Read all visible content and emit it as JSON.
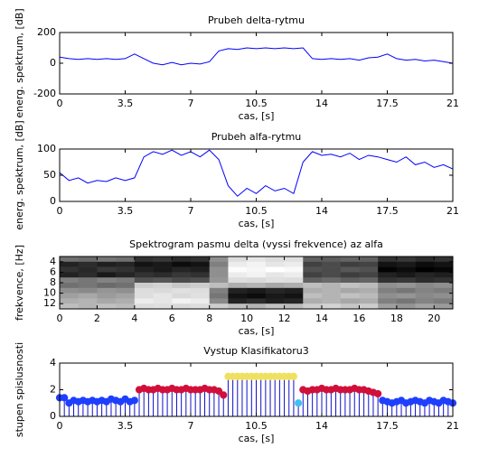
{
  "chart_data": [
    {
      "type": "line",
      "title": "Prubeh delta-rytmu",
      "xlabel": "cas, [s]",
      "ylabel": "energ. spektrum, [dB]",
      "color": "#0000ff",
      "x": [
        0,
        0.5,
        1,
        1.5,
        2,
        2.5,
        3,
        3.5,
        4,
        4.5,
        5,
        5.5,
        6,
        6.5,
        7,
        7.5,
        8,
        8.5,
        9,
        9.5,
        10,
        10.5,
        11,
        11.5,
        12,
        12.5,
        13,
        13.5,
        14,
        14.5,
        15,
        15.5,
        16,
        16.5,
        17,
        17.5,
        18,
        18.5,
        19,
        19.5,
        20,
        20.5,
        21
      ],
      "values": [
        40,
        30,
        25,
        30,
        25,
        30,
        25,
        30,
        60,
        30,
        0,
        -10,
        5,
        -10,
        0,
        -5,
        10,
        80,
        95,
        90,
        100,
        95,
        100,
        95,
        100,
        95,
        100,
        30,
        25,
        30,
        25,
        30,
        20,
        35,
        40,
        60,
        30,
        20,
        25,
        15,
        20,
        10,
        0
      ],
      "xlim": [
        0,
        21
      ],
      "xticks": [
        0,
        3.5,
        7,
        10.5,
        14,
        17.5,
        21
      ],
      "ylim": [
        -200,
        200
      ],
      "yticks": [
        -200,
        0,
        200
      ]
    },
    {
      "type": "line",
      "title": "Prubeh alfa-rytmu",
      "xlabel": "cas, [s]",
      "ylabel": "energ. spektrum, [dB]",
      "color": "#0000ff",
      "x": [
        0,
        0.5,
        1,
        1.5,
        2,
        2.5,
        3,
        3.5,
        4,
        4.5,
        5,
        5.5,
        6,
        6.5,
        7,
        7.5,
        8,
        8.5,
        9,
        9.5,
        10,
        10.5,
        11,
        11.5,
        12,
        12.5,
        13,
        13.5,
        14,
        14.5,
        15,
        15.5,
        16,
        16.5,
        17,
        17.5,
        18,
        18.5,
        19,
        19.5,
        20,
        20.5,
        21
      ],
      "values": [
        55,
        40,
        45,
        35,
        40,
        38,
        45,
        40,
        45,
        85,
        95,
        90,
        98,
        88,
        95,
        85,
        98,
        80,
        30,
        10,
        25,
        15,
        30,
        20,
        25,
        15,
        75,
        95,
        88,
        90,
        85,
        92,
        80,
        88,
        85,
        80,
        75,
        85,
        70,
        75,
        65,
        70,
        62
      ],
      "xlim": [
        0,
        21
      ],
      "xticks": [
        0,
        3.5,
        7,
        10.5,
        14,
        17.5,
        21
      ],
      "ylim": [
        0,
        100
      ],
      "yticks": [
        0,
        50,
        100
      ]
    },
    {
      "type": "heatmap",
      "title": "Spektrogram pasmu delta (vyssi frekvence) az alfa",
      "xlabel": "cas, [s]",
      "ylabel": "frekvence, [Hz]",
      "colormap": "gray",
      "ydir": "reverse",
      "values": [
        [
          50,
          48,
          52,
          50,
          30,
          32,
          28,
          30,
          60,
          85,
          88,
          85,
          86,
          45,
          44,
          46,
          45,
          30,
          32,
          28,
          30
        ],
        [
          25,
          28,
          24,
          26,
          20,
          22,
          18,
          20,
          55,
          90,
          92,
          88,
          90,
          35,
          38,
          34,
          36,
          20,
          22,
          18,
          20
        ],
        [
          30,
          27,
          32,
          30,
          25,
          22,
          26,
          24,
          60,
          95,
          93,
          96,
          94,
          40,
          38,
          42,
          40,
          15,
          18,
          14,
          16
        ],
        [
          25,
          28,
          22,
          26,
          30,
          28,
          32,
          30,
          60,
          90,
          92,
          88,
          90,
          35,
          38,
          34,
          36,
          25,
          22,
          26,
          24
        ],
        [
          55,
          52,
          56,
          54,
          40,
          42,
          38,
          40,
          62,
          85,
          84,
          86,
          85,
          45,
          48,
          44,
          46,
          30,
          32,
          28,
          30
        ],
        [
          50,
          52,
          48,
          50,
          80,
          82,
          78,
          80,
          75,
          70,
          72,
          68,
          70,
          75,
          72,
          76,
          74,
          60,
          62,
          58,
          60
        ],
        [
          60,
          58,
          62,
          60,
          85,
          84,
          86,
          85,
          55,
          25,
          22,
          26,
          24,
          70,
          72,
          68,
          70,
          55,
          52,
          56,
          54
        ],
        [
          65,
          68,
          64,
          66,
          85,
          88,
          84,
          86,
          52,
          20,
          18,
          22,
          20,
          75,
          72,
          76,
          74,
          60,
          62,
          58,
          60
        ],
        [
          70,
          72,
          68,
          70,
          90,
          88,
          92,
          90,
          58,
          25,
          28,
          24,
          26,
          70,
          72,
          68,
          70,
          55,
          52,
          56,
          54
        ],
        [
          75,
          72,
          76,
          74,
          85,
          86,
          84,
          85,
          80,
          75,
          72,
          76,
          74,
          80,
          82,
          78,
          80,
          65,
          62,
          66,
          64
        ]
      ],
      "xlim": [
        0,
        21
      ],
      "xticks": [
        0,
        2,
        4,
        6,
        8,
        10,
        12,
        14,
        16,
        18,
        20
      ],
      "ylim": [
        3,
        13
      ],
      "yticks": [
        4,
        6,
        8,
        10,
        12
      ]
    },
    {
      "type": "stem",
      "title": "Vystup Klasifikatoru3",
      "xlabel": "cas, [s]",
      "ylabel": "stupen spislusnosti",
      "stem_color": "#1010c8",
      "series": [
        {
          "color": "#1f3fff",
          "x": [
            0,
            0.25,
            0.5,
            0.75,
            1,
            1.25,
            1.5,
            1.75,
            2,
            2.25,
            2.5,
            2.75,
            3,
            3.25,
            3.5,
            3.75,
            4
          ],
          "values": [
            1.4,
            1.4,
            1.0,
            1.2,
            1.1,
            1.2,
            1.1,
            1.2,
            1.1,
            1.2,
            1.1,
            1.3,
            1.2,
            1.1,
            1.3,
            1.1,
            1.2
          ]
        },
        {
          "color": "#d0103a",
          "x": [
            4.25,
            4.5,
            4.75,
            5,
            5.25,
            5.5,
            5.75,
            6,
            6.25,
            6.5,
            6.75,
            7,
            7.25,
            7.5,
            7.75,
            8,
            8.25,
            8.5,
            8.75
          ],
          "values": [
            2.0,
            2.1,
            2.0,
            2.0,
            2.1,
            2.0,
            2.0,
            2.1,
            2.0,
            2.0,
            2.1,
            2.0,
            2.0,
            2.0,
            2.1,
            2.0,
            2.0,
            1.9,
            1.6
          ]
        },
        {
          "color": "#f0e060",
          "x": [
            9,
            9.25,
            9.5,
            9.75,
            10,
            10.25,
            10.5,
            10.75,
            11,
            11.25,
            11.5,
            11.75,
            12,
            12.25,
            12.5
          ],
          "values": [
            3,
            3,
            3,
            3,
            3,
            3,
            3,
            3,
            3,
            3,
            3,
            3,
            3,
            3,
            3
          ]
        },
        {
          "color": "#40c0f0",
          "x": [
            12.75
          ],
          "values": [
            1.0
          ]
        },
        {
          "color": "#d0103a",
          "x": [
            13,
            13.25,
            13.5,
            13.75,
            14,
            14.25,
            14.5,
            14.75,
            15,
            15.25,
            15.5,
            15.75,
            16,
            16.25,
            16.5,
            16.75,
            17
          ],
          "values": [
            2.0,
            1.9,
            2.0,
            2.0,
            2.1,
            2.0,
            2.0,
            2.1,
            2.0,
            2.0,
            2.0,
            2.1,
            2.0,
            2.0,
            1.9,
            1.8,
            1.7
          ]
        },
        {
          "color": "#1f3fff",
          "x": [
            17.25,
            17.5,
            17.75,
            18,
            18.25,
            18.5,
            18.75,
            19,
            19.25,
            19.5,
            19.75,
            20,
            20.25,
            20.5,
            20.75,
            21
          ],
          "values": [
            1.2,
            1.1,
            1.0,
            1.1,
            1.2,
            1.0,
            1.1,
            1.2,
            1.1,
            1.0,
            1.2,
            1.1,
            1.0,
            1.2,
            1.1,
            1.0
          ]
        }
      ],
      "xlim": [
        0,
        21
      ],
      "xticks": [
        0,
        3.5,
        7,
        10.5,
        14,
        17.5,
        21
      ],
      "ylim": [
        0,
        4
      ],
      "yticks": [
        0,
        2,
        4
      ]
    }
  ]
}
